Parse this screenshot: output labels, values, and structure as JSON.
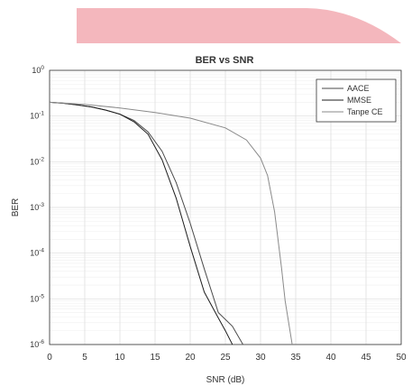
{
  "colors": {
    "banner": "#f4b7bd",
    "axis": "#333333",
    "grid_major": "#dcdcdc",
    "grid_minor": "#efefef",
    "series": [
      "#4a4a4a",
      "#1e1e1e",
      "#8a8a8a"
    ]
  },
  "chart_data": {
    "type": "line",
    "title": "BER vs SNR",
    "xlabel": "SNR (dB)",
    "ylabel": "BER",
    "xlim": [
      0,
      50
    ],
    "ylim": [
      1e-06,
      1
    ],
    "yscale": "log",
    "grid": true,
    "legend_position": "top-right",
    "x_ticks": [
      "0",
      "5",
      "10",
      "15",
      "20",
      "25",
      "30",
      "35",
      "40",
      "45",
      "50"
    ],
    "y_ticks": [
      {
        "value": 1,
        "base": "10",
        "exp": "0"
      },
      {
        "value": 0.1,
        "base": "10",
        "exp": "-1"
      },
      {
        "value": 0.01,
        "base": "10",
        "exp": "-2"
      },
      {
        "value": 0.001,
        "base": "10",
        "exp": "-3"
      },
      {
        "value": 0.0001,
        "base": "10",
        "exp": "-4"
      },
      {
        "value": 1e-05,
        "base": "10",
        "exp": "-5"
      },
      {
        "value": 1e-06,
        "base": "10",
        "exp": "-6"
      }
    ],
    "series": [
      {
        "name": "AACE",
        "x": [
          0,
          2,
          4,
          6,
          8,
          10,
          12,
          14,
          16,
          18,
          20,
          22,
          24,
          26,
          27.5
        ],
        "y": [
          0.2,
          0.19,
          0.175,
          0.158,
          0.135,
          0.11,
          0.08,
          0.045,
          0.017,
          0.0035,
          0.00045,
          4.5e-05,
          5e-06,
          2.5e-06,
          1e-06
        ]
      },
      {
        "name": "MMSE",
        "x": [
          0,
          2,
          4,
          6,
          8,
          10,
          12,
          14,
          16,
          18,
          20,
          22,
          24,
          25,
          26
        ],
        "y": [
          0.2,
          0.19,
          0.175,
          0.158,
          0.135,
          0.11,
          0.075,
          0.04,
          0.011,
          0.0016,
          0.00014,
          1.4e-05,
          3.8e-06,
          2e-06,
          1e-06
        ]
      },
      {
        "name": "Tanpe CE",
        "x": [
          0,
          5,
          10,
          15,
          20,
          25,
          28,
          30,
          31,
          32,
          33,
          33.5,
          34,
          34.5
        ],
        "y": [
          0.2,
          0.18,
          0.15,
          0.12,
          0.09,
          0.055,
          0.03,
          0.012,
          0.005,
          0.0008,
          4.5e-05,
          9e-06,
          3e-06,
          1e-06
        ]
      }
    ]
  }
}
